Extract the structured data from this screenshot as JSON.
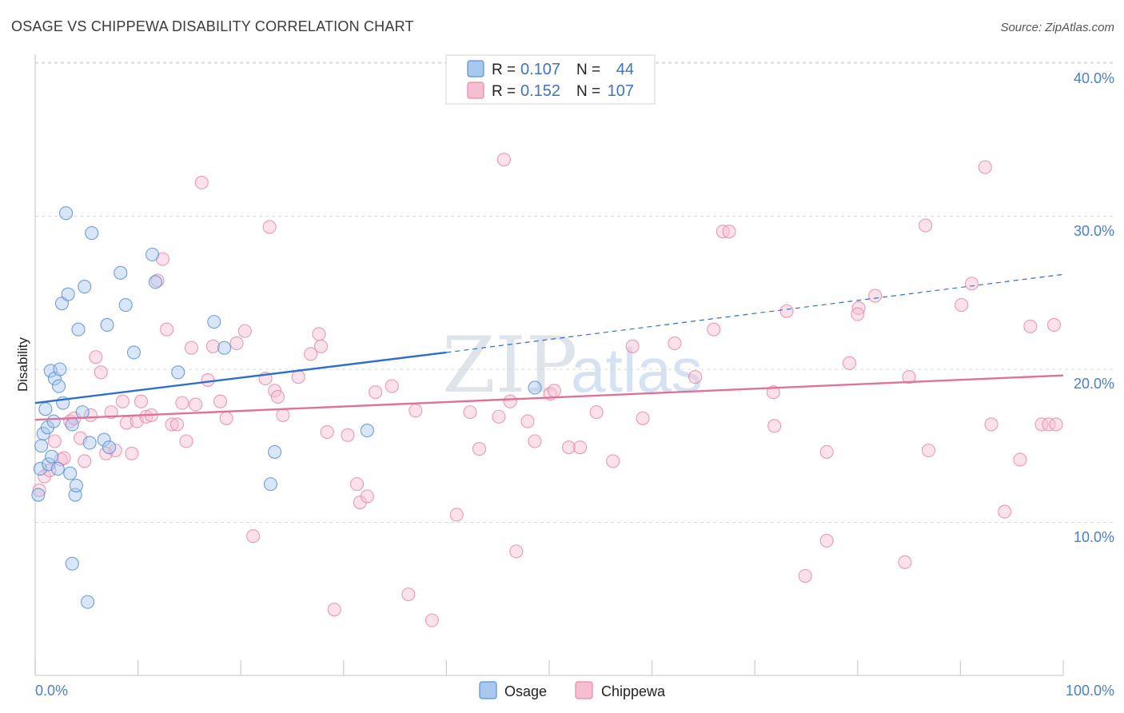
{
  "chart_data": {
    "type": "scatter",
    "title": "OSAGE VS CHIPPEWA DISABILITY CORRELATION CHART",
    "source": "Source: ZipAtlas.com",
    "xlabel": "",
    "ylabel": "Disability",
    "xlim": [
      0,
      100
    ],
    "ylim": [
      0,
      42
    ],
    "x_tick_labels": [
      "0.0%",
      "100.0%"
    ],
    "y_ticks": [
      10,
      20,
      30,
      40
    ],
    "y_tick_labels": [
      "10.0%",
      "20.0%",
      "30.0%",
      "40.0%"
    ],
    "watermark": [
      "ZIP",
      "atlas"
    ],
    "colors": {
      "osage_fill": "#a9c8f0",
      "osage_stroke": "#5b8fd6",
      "osage_line": "#2f6fcc",
      "chippewa_fill": "#f6bfd0",
      "chippewa_stroke": "#e68aa8",
      "chippewa_line": "#e07199",
      "grid": "#d9d9d9",
      "accent_text": "#4a7fd0"
    },
    "legend": {
      "entries": [
        {
          "r_label": "R =",
          "r_value": "0.107",
          "n_label": "N =",
          "n_value": "44"
        },
        {
          "r_label": "R =",
          "r_value": "0.152",
          "n_label": "N =",
          "n_value": "107"
        }
      ]
    },
    "series": [
      {
        "name": "Osage",
        "trend": {
          "x0": 0,
          "y0": 17.8,
          "x1": 40,
          "y1": 21.1,
          "x_dash_end": 100,
          "y_dash_end": 26.2
        },
        "points": [
          [
            0.3,
            11.8
          ],
          [
            0.5,
            13.5
          ],
          [
            0.6,
            15.0
          ],
          [
            0.8,
            15.8
          ],
          [
            1.0,
            17.4
          ],
          [
            1.2,
            16.2
          ],
          [
            1.3,
            13.8
          ],
          [
            1.5,
            19.9
          ],
          [
            1.6,
            14.3
          ],
          [
            1.8,
            16.6
          ],
          [
            1.9,
            19.4
          ],
          [
            2.2,
            13.5
          ],
          [
            2.3,
            18.9
          ],
          [
            2.4,
            20.0
          ],
          [
            2.6,
            24.3
          ],
          [
            2.7,
            17.8
          ],
          [
            3.0,
            30.2
          ],
          [
            3.2,
            24.9
          ],
          [
            3.4,
            13.2
          ],
          [
            3.6,
            7.3
          ],
          [
            3.6,
            16.4
          ],
          [
            3.9,
            11.8
          ],
          [
            4.0,
            12.4
          ],
          [
            4.2,
            22.6
          ],
          [
            4.6,
            17.2
          ],
          [
            4.8,
            25.4
          ],
          [
            5.1,
            4.8
          ],
          [
            5.3,
            15.2
          ],
          [
            5.5,
            28.9
          ],
          [
            6.7,
            15.4
          ],
          [
            7.0,
            22.9
          ],
          [
            7.2,
            14.9
          ],
          [
            8.3,
            26.3
          ],
          [
            8.8,
            24.2
          ],
          [
            9.6,
            21.1
          ],
          [
            11.4,
            27.5
          ],
          [
            11.7,
            25.7
          ],
          [
            13.9,
            19.8
          ],
          [
            17.4,
            23.1
          ],
          [
            18.4,
            21.4
          ],
          [
            22.9,
            12.5
          ],
          [
            23.3,
            14.6
          ],
          [
            32.3,
            16.0
          ],
          [
            48.6,
            18.8
          ]
        ]
      },
      {
        "name": "Chippewa",
        "trend": {
          "x0": 0,
          "y0": 16.7,
          "x1": 100,
          "y1": 19.6
        },
        "points": [
          [
            0.4,
            12.1
          ],
          [
            0.9,
            13.0
          ],
          [
            1.4,
            13.4
          ],
          [
            1.9,
            15.3
          ],
          [
            2.5,
            14.1
          ],
          [
            2.8,
            14.2
          ],
          [
            3.4,
            16.6
          ],
          [
            3.8,
            16.8
          ],
          [
            4.4,
            15.5
          ],
          [
            4.8,
            14.0
          ],
          [
            5.4,
            17.0
          ],
          [
            5.9,
            20.8
          ],
          [
            6.4,
            19.8
          ],
          [
            6.9,
            14.5
          ],
          [
            7.4,
            17.2
          ],
          [
            7.8,
            14.7
          ],
          [
            8.5,
            17.9
          ],
          [
            8.9,
            16.5
          ],
          [
            9.4,
            14.5
          ],
          [
            9.9,
            16.6
          ],
          [
            10.3,
            17.9
          ],
          [
            10.8,
            16.9
          ],
          [
            11.3,
            17.0
          ],
          [
            11.9,
            25.8
          ],
          [
            12.4,
            27.2
          ],
          [
            12.8,
            22.6
          ],
          [
            13.3,
            16.4
          ],
          [
            13.8,
            16.4
          ],
          [
            14.3,
            17.8
          ],
          [
            14.7,
            15.3
          ],
          [
            15.2,
            21.4
          ],
          [
            15.6,
            17.7
          ],
          [
            16.2,
            32.2
          ],
          [
            16.8,
            19.3
          ],
          [
            17.3,
            21.5
          ],
          [
            18.0,
            17.9
          ],
          [
            18.6,
            16.8
          ],
          [
            19.6,
            21.7
          ],
          [
            20.4,
            22.5
          ],
          [
            21.2,
            9.1
          ],
          [
            22.4,
            19.4
          ],
          [
            22.8,
            29.3
          ],
          [
            23.3,
            18.6
          ],
          [
            23.6,
            18.2
          ],
          [
            24.1,
            17.0
          ],
          [
            25.6,
            19.5
          ],
          [
            26.8,
            21.0
          ],
          [
            27.6,
            22.3
          ],
          [
            27.8,
            21.5
          ],
          [
            28.4,
            15.9
          ],
          [
            29.1,
            4.3
          ],
          [
            30.4,
            15.7
          ],
          [
            31.3,
            12.5
          ],
          [
            31.6,
            11.3
          ],
          [
            32.3,
            11.7
          ],
          [
            33.1,
            18.5
          ],
          [
            34.7,
            18.9
          ],
          [
            36.3,
            5.3
          ],
          [
            37.0,
            17.3
          ],
          [
            38.6,
            3.6
          ],
          [
            41.0,
            10.5
          ],
          [
            42.3,
            17.2
          ],
          [
            43.2,
            14.8
          ],
          [
            45.1,
            16.9
          ],
          [
            45.6,
            33.7
          ],
          [
            46.2,
            17.9
          ],
          [
            46.8,
            8.1
          ],
          [
            47.9,
            16.6
          ],
          [
            48.6,
            15.3
          ],
          [
            50.1,
            18.4
          ],
          [
            50.5,
            18.6
          ],
          [
            51.9,
            14.9
          ],
          [
            53.0,
            14.9
          ],
          [
            54.6,
            17.2
          ],
          [
            56.2,
            14.0
          ],
          [
            58.1,
            21.5
          ],
          [
            59.1,
            16.8
          ],
          [
            62.2,
            21.7
          ],
          [
            64.2,
            19.5
          ],
          [
            66.0,
            22.6
          ],
          [
            66.9,
            29.0
          ],
          [
            67.5,
            29.0
          ],
          [
            71.8,
            18.5
          ],
          [
            71.9,
            16.3
          ],
          [
            73.1,
            23.8
          ],
          [
            74.9,
            6.5
          ],
          [
            77.0,
            14.6
          ],
          [
            77.0,
            8.8
          ],
          [
            79.2,
            20.4
          ],
          [
            80.1,
            24.0
          ],
          [
            80.0,
            23.6
          ],
          [
            81.7,
            24.8
          ],
          [
            84.6,
            7.4
          ],
          [
            85.0,
            19.5
          ],
          [
            86.6,
            29.4
          ],
          [
            86.9,
            14.7
          ],
          [
            90.1,
            24.2
          ],
          [
            91.1,
            25.6
          ],
          [
            92.4,
            33.2
          ],
          [
            93.0,
            16.4
          ],
          [
            94.3,
            10.7
          ],
          [
            95.8,
            14.1
          ],
          [
            96.8,
            22.8
          ],
          [
            97.9,
            16.4
          ],
          [
            98.6,
            16.4
          ],
          [
            99.1,
            22.9
          ],
          [
            99.3,
            16.4
          ]
        ]
      }
    ]
  }
}
